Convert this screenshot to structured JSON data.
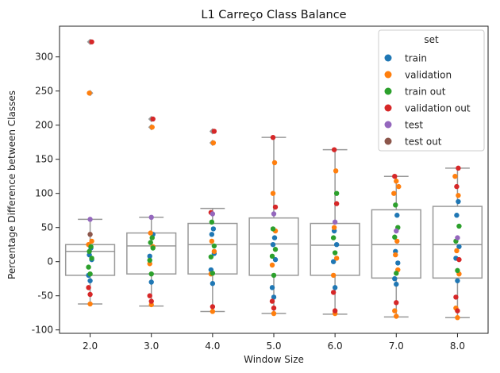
{
  "chart_data": {
    "type": "box",
    "title": "L1 Carreço Class Balance",
    "xlabel": "Window Size",
    "ylabel": "Percentage Difference between Classes",
    "categories": [
      "2.0",
      "3.0",
      "4.0",
      "5.0",
      "6.0",
      "7.0",
      "8.0"
    ],
    "ylim": [
      -105,
      345
    ],
    "yticks": [
      -100,
      -50,
      0,
      50,
      100,
      150,
      200,
      250,
      300
    ],
    "grid": false,
    "legend": {
      "title": "set",
      "placement": "top-right",
      "entries": [
        {
          "name": "train",
          "color": "#1f77b4"
        },
        {
          "name": "validation",
          "color": "#ff7f0e"
        },
        {
          "name": "train out",
          "color": "#2ca02c"
        },
        {
          "name": "validation out",
          "color": "#d62728"
        },
        {
          "name": "test",
          "color": "#9467bd"
        },
        {
          "name": "test out",
          "color": "#8c564b"
        }
      ]
    },
    "box_color": "#999999",
    "boxes": [
      {
        "category": "2.0",
        "q1": -20,
        "median": 15,
        "q3": 25,
        "whisker_low": -62,
        "whisker_high": 62,
        "outliers": [
          247,
          322
        ]
      },
      {
        "category": "3.0",
        "q1": -18,
        "median": 23,
        "q3": 42,
        "whisker_low": -65,
        "whisker_high": 65,
        "outliers": [
          197,
          209
        ]
      },
      {
        "category": "4.0",
        "q1": -18,
        "median": 25,
        "q3": 56,
        "whisker_low": -73,
        "whisker_high": 78,
        "outliers": [
          174,
          191
        ]
      },
      {
        "category": "5.0",
        "q1": -20,
        "median": 26,
        "q3": 64,
        "whisker_low": -76,
        "whisker_high": 182,
        "outliers": []
      },
      {
        "category": "6.0",
        "q1": -20,
        "median": 24,
        "q3": 56,
        "whisker_low": -77,
        "whisker_high": 164,
        "outliers": []
      },
      {
        "category": "7.0",
        "q1": -24,
        "median": 25,
        "q3": 76,
        "whisker_low": -81,
        "whisker_high": 125,
        "outliers": []
      },
      {
        "category": "8.0",
        "q1": -24,
        "median": 25,
        "q3": 81,
        "whisker_low": -82,
        "whisker_high": 137,
        "outliers": []
      }
    ],
    "points": [
      {
        "category": "2.0",
        "series": "train",
        "values": [
          -28,
          -20,
          3,
          10,
          20
        ]
      },
      {
        "category": "2.0",
        "series": "validation",
        "values": [
          -62,
          25,
          30,
          247
        ]
      },
      {
        "category": "2.0",
        "series": "train out",
        "values": [
          -18,
          -8,
          5,
          15,
          22
        ]
      },
      {
        "category": "2.0",
        "series": "validation out",
        "values": [
          -48,
          -38,
          322
        ]
      },
      {
        "category": "2.0",
        "series": "test",
        "values": [
          62
        ]
      },
      {
        "category": "2.0",
        "series": "test out",
        "values": [
          40
        ]
      },
      {
        "category": "3.0",
        "series": "train",
        "values": [
          -30,
          8,
          40
        ]
      },
      {
        "category": "3.0",
        "series": "validation",
        "values": [
          -63,
          -3,
          22,
          42,
          197
        ]
      },
      {
        "category": "3.0",
        "series": "train out",
        "values": [
          -18,
          2,
          20,
          28,
          35
        ]
      },
      {
        "category": "3.0",
        "series": "validation out",
        "values": [
          -58,
          -50,
          209
        ]
      },
      {
        "category": "3.0",
        "series": "test",
        "values": [
          65
        ]
      },
      {
        "category": "4.0",
        "series": "train",
        "values": [
          -32,
          -12,
          12,
          40,
          48
        ]
      },
      {
        "category": "4.0",
        "series": "validation",
        "values": [
          -73,
          -18,
          15,
          30,
          174
        ]
      },
      {
        "category": "4.0",
        "series": "train out",
        "values": [
          -17,
          7,
          23,
          58
        ]
      },
      {
        "category": "4.0",
        "series": "validation out",
        "values": [
          -66,
          72,
          191
        ]
      },
      {
        "category": "4.0",
        "series": "test",
        "values": [
          70
        ]
      },
      {
        "category": "5.0",
        "series": "train",
        "values": [
          -52,
          -38,
          3,
          25,
          35
        ]
      },
      {
        "category": "5.0",
        "series": "validation",
        "values": [
          -76,
          -5,
          45,
          100,
          145
        ]
      },
      {
        "category": "5.0",
        "series": "train out",
        "values": [
          -20,
          8,
          18,
          48
        ]
      },
      {
        "category": "5.0",
        "series": "validation out",
        "values": [
          -68,
          -58,
          80,
          182
        ]
      },
      {
        "category": "5.0",
        "series": "test",
        "values": [
          70
        ]
      },
      {
        "category": "6.0",
        "series": "train",
        "values": [
          -38,
          0,
          25,
          45
        ]
      },
      {
        "category": "6.0",
        "series": "validation",
        "values": [
          -76,
          -20,
          5,
          50,
          133
        ]
      },
      {
        "category": "6.0",
        "series": "train out",
        "values": [
          13,
          35,
          100
        ]
      },
      {
        "category": "6.0",
        "series": "validation out",
        "values": [
          -72,
          -45,
          85,
          164
        ]
      },
      {
        "category": "6.0",
        "series": "test",
        "values": [
          58
        ]
      },
      {
        "category": "7.0",
        "series": "train",
        "values": [
          -33,
          -25,
          -2,
          15,
          68
        ]
      },
      {
        "category": "7.0",
        "series": "validation",
        "values": [
          -80,
          -72,
          -12,
          10,
          30,
          100,
          110,
          118
        ]
      },
      {
        "category": "7.0",
        "series": "train out",
        "values": [
          -17,
          36,
          50,
          83
        ]
      },
      {
        "category": "7.0",
        "series": "validation out",
        "values": [
          -60,
          125
        ]
      },
      {
        "category": "7.0",
        "series": "test",
        "values": [
          45
        ]
      },
      {
        "category": "8.0",
        "series": "train",
        "values": [
          -28,
          5,
          22,
          68,
          88
        ]
      },
      {
        "category": "8.0",
        "series": "validation",
        "values": [
          -82,
          -68,
          -18,
          16,
          97,
          125
        ]
      },
      {
        "category": "8.0",
        "series": "train out",
        "values": [
          -13,
          30,
          52
        ]
      },
      {
        "category": "8.0",
        "series": "validation out",
        "values": [
          -72,
          -52,
          3,
          110,
          137
        ]
      },
      {
        "category": "8.0",
        "series": "test",
        "values": [
          35
        ]
      }
    ]
  }
}
